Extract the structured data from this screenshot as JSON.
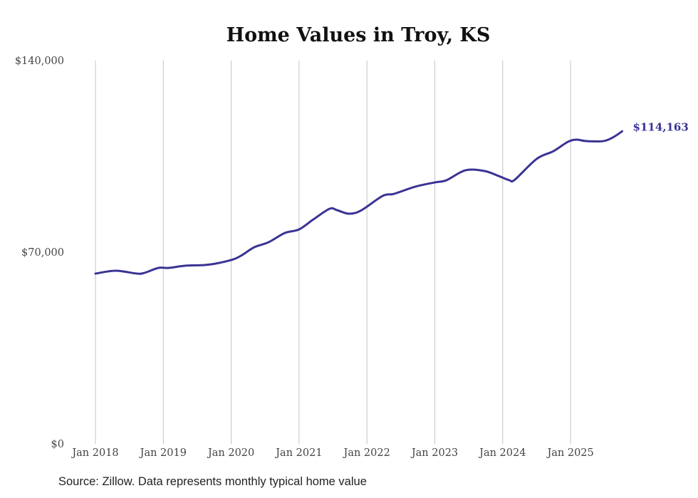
{
  "chart_data": {
    "type": "line",
    "title": "Home Values in Troy, KS",
    "xlabel": "",
    "ylabel": "",
    "ylim": [
      0,
      140000
    ],
    "xlim": [
      2018,
      2025.76
    ],
    "y_ticks": [
      {
        "value": 0,
        "label": "$0"
      },
      {
        "value": 70000,
        "label": "$70,000"
      },
      {
        "value": 140000,
        "label": "$140,000"
      }
    ],
    "x_ticks": [
      {
        "value": 2018,
        "label": "Jan 2018"
      },
      {
        "value": 2019,
        "label": "Jan 2019"
      },
      {
        "value": 2020,
        "label": "Jan 2020"
      },
      {
        "value": 2021,
        "label": "Jan 2021"
      },
      {
        "value": 2022,
        "label": "Jan 2022"
      },
      {
        "value": 2023,
        "label": "Jan 2023"
      },
      {
        "value": 2024,
        "label": "Jan 2024"
      },
      {
        "value": 2025,
        "label": "Jan 2025"
      }
    ],
    "grid": "vertical",
    "series": [
      {
        "name": "Typical home value",
        "color": "#3a3394",
        "x": [
          2018.0,
          2018.3,
          2018.61,
          2018.72,
          2018.93,
          2019.08,
          2019.32,
          2019.61,
          2019.77,
          2020.03,
          2020.16,
          2020.34,
          2020.55,
          2020.79,
          2021.0,
          2021.21,
          2021.45,
          2021.56,
          2021.74,
          2021.92,
          2022.23,
          2022.4,
          2022.71,
          2023.0,
          2023.17,
          2023.45,
          2023.73,
          2023.94,
          2024.1,
          2024.18,
          2024.5,
          2024.75,
          2024.96,
          2025.09,
          2025.23,
          2025.48,
          2025.62,
          2025.76
        ],
        "values": [
          62190,
          63230,
          62190,
          62450,
          64270,
          64270,
          65050,
          65310,
          65830,
          67390,
          68950,
          71820,
          73640,
          77020,
          78320,
          81960,
          85870,
          85350,
          84040,
          85350,
          90550,
          91330,
          93930,
          95490,
          96270,
          99920,
          99660,
          97830,
          96270,
          96530,
          104080,
          106940,
          110320,
          111100,
          110580,
          110580,
          111880,
          114163
        ]
      }
    ],
    "end_label": "$114,163",
    "source": "Source: Zillow. Data represents monthly typical home value"
  }
}
